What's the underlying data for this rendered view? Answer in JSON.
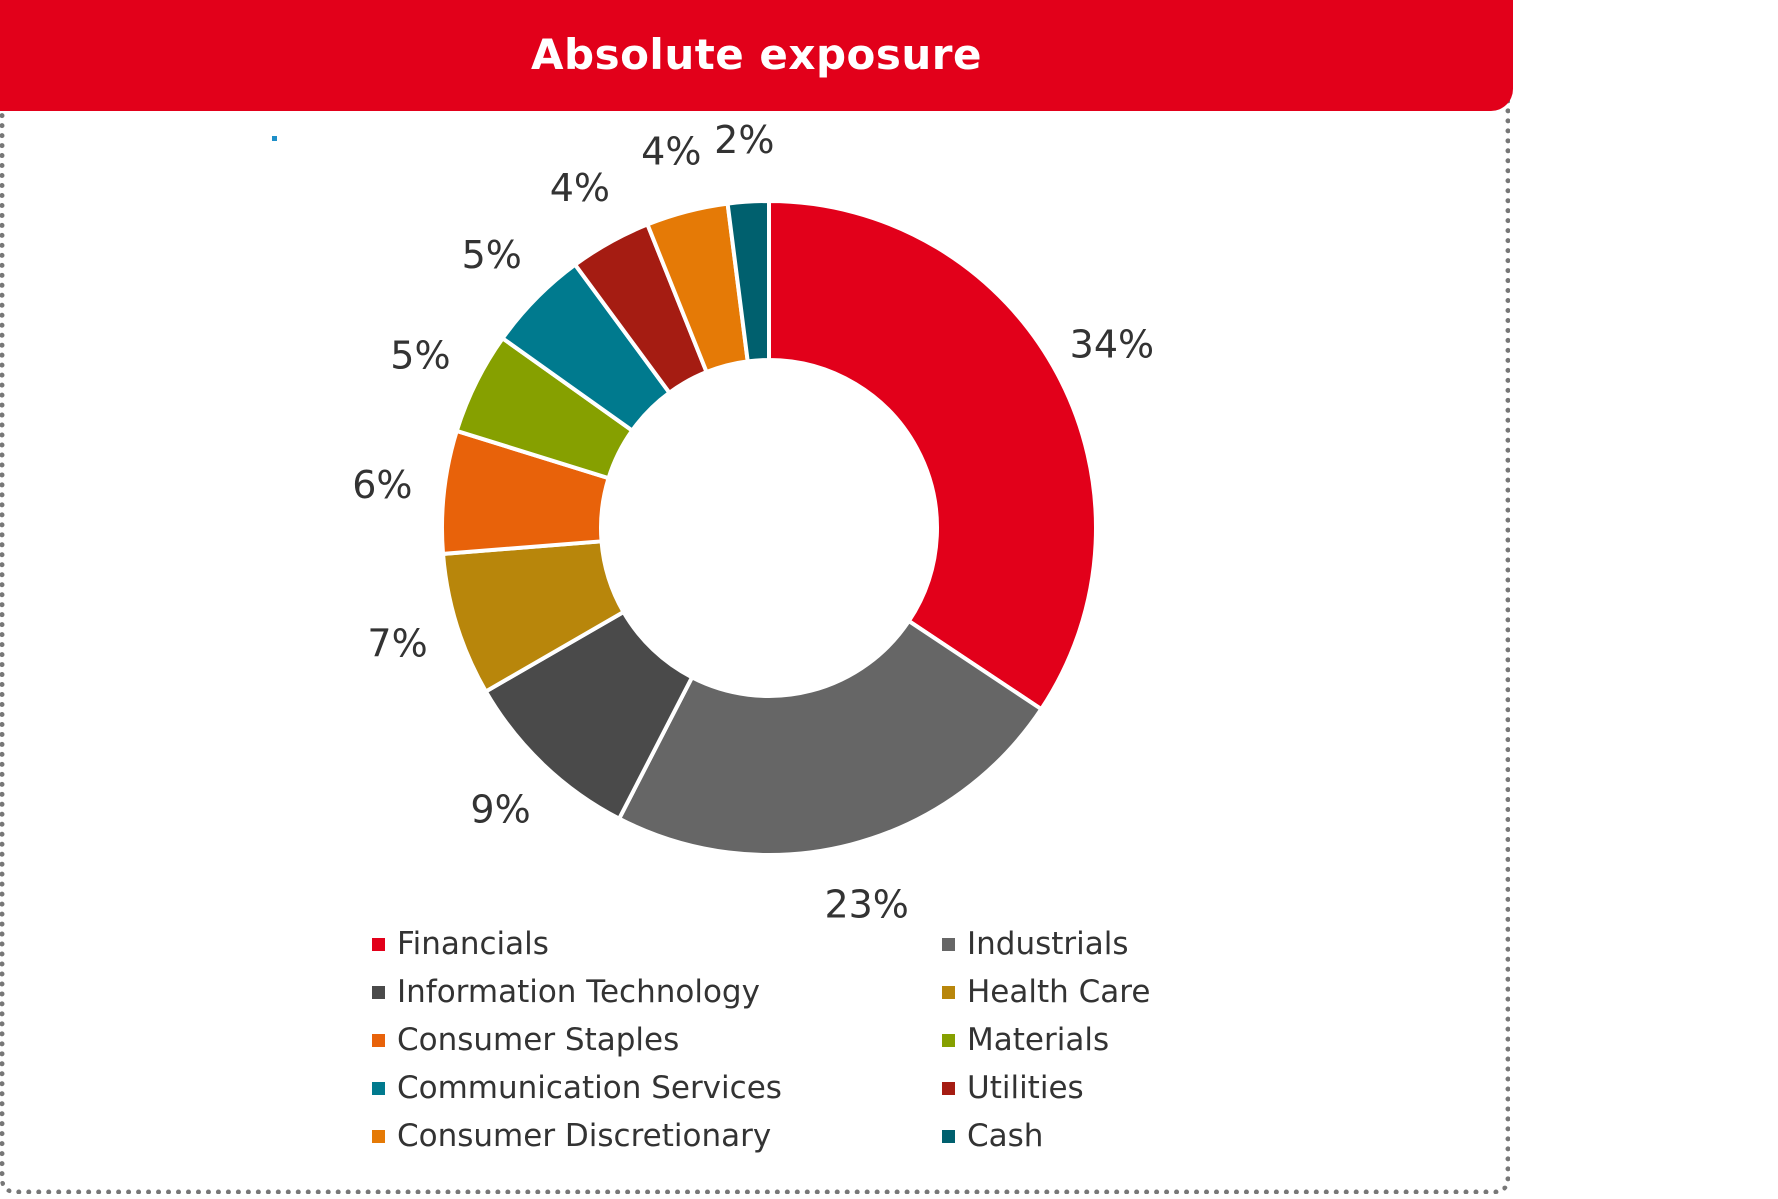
{
  "header": {
    "title": "Absolute exposure",
    "background": "#E2001A"
  },
  "accent_dot_color": "#1E8FC8",
  "chart_data": {
    "type": "pie",
    "variant": "donut",
    "title": "Absolute exposure",
    "legend_position": "bottom",
    "series": [
      {
        "name": "Financials",
        "value": 34,
        "label": "34%",
        "color": "#E2001A"
      },
      {
        "name": "Industrials",
        "value": 23,
        "label": "23%",
        "color": "#666666"
      },
      {
        "name": "Information Technology",
        "value": 9,
        "label": "9%",
        "color": "#4A4A4A"
      },
      {
        "name": "Health Care",
        "value": 7,
        "label": "7%",
        "color": "#B8860B"
      },
      {
        "name": "Consumer Staples",
        "value": 6,
        "label": "6%",
        "color": "#E8620A"
      },
      {
        "name": "Materials",
        "value": 5,
        "label": "5%",
        "color": "#86A000"
      },
      {
        "name": "Communication Services",
        "value": 5,
        "label": "5%",
        "color": "#007A8E"
      },
      {
        "name": "Utilities",
        "value": 4,
        "label": "4%",
        "color": "#A51C12"
      },
      {
        "name": "Consumer Discretionary",
        "value": 4,
        "label": "4%",
        "color": "#E57A06"
      },
      {
        "name": "Cash",
        "value": 2,
        "label": "2%",
        "color": "#00606E"
      }
    ]
  }
}
